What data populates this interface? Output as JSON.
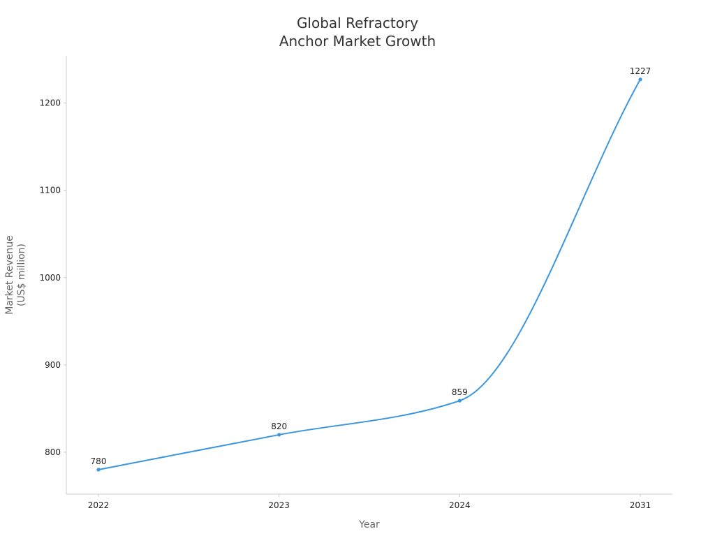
{
  "chart_data": {
    "type": "line",
    "title": [
      "Global Refractory",
      "Anchor Market Growth"
    ],
    "xlabel": "Year",
    "ylabel": [
      "Market Revenue",
      "(US$ million)"
    ],
    "categories": [
      "2022",
      "2023",
      "2024",
      "2031"
    ],
    "series": [
      {
        "values": [
          780,
          820,
          859,
          1227
        ],
        "color": "#3a96e0"
      }
    ],
    "data_labels": [
      "780",
      "820",
      "859",
      "1227"
    ],
    "yticks": [
      800,
      900,
      1000,
      1100,
      1200
    ],
    "ytick_labels": [
      "800",
      "900",
      "1000",
      "1100",
      "1200"
    ],
    "ylim": [
      752,
      1254
    ],
    "grid": false,
    "legend": "none",
    "axis_color": "#cccccc",
    "curve": "smooth"
  }
}
